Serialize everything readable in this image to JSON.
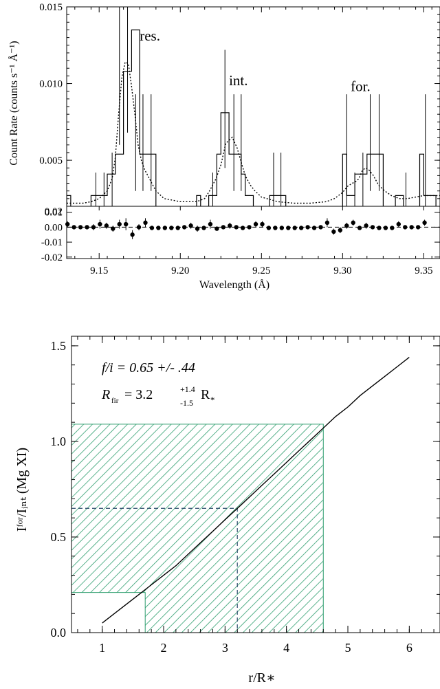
{
  "chart_data": [
    {
      "type": "line",
      "panel": "spectrum",
      "ylabel": "Count Rate (counts s⁻¹ Å⁻¹)",
      "xlim": [
        9.13,
        9.36
      ],
      "ylim": [
        0.002,
        0.015
      ],
      "y_ticks": [
        "0.005",
        "0.010",
        "0.015"
      ],
      "y_tick_values": [
        0.005,
        0.01,
        0.015
      ],
      "bottom_label": "0.02",
      "line_labels": [
        {
          "text": "res.",
          "x": 9.175,
          "y": 0.0128
        },
        {
          "text": "int.",
          "x": 9.23,
          "y": 0.0099
        },
        {
          "text": "for.",
          "x": 9.305,
          "y": 0.0095
        }
      ],
      "data_histogram": {
        "edges": [
          9.13,
          9.1325,
          9.1375,
          9.145,
          9.15,
          9.155,
          9.16,
          9.165,
          9.17,
          9.175,
          9.185,
          9.21,
          9.2125,
          9.2175,
          9.2225,
          9.225,
          9.23,
          9.235,
          9.2375,
          9.24,
          9.245,
          9.255,
          9.2575,
          9.265,
          9.3,
          9.3025,
          9.3075,
          9.3125,
          9.315,
          9.325,
          9.3325,
          9.3375,
          9.3475,
          9.35,
          9.3575
        ],
        "values": [
          0.0027,
          null,
          null,
          0.0027,
          0.0027,
          0.0041,
          0.0054,
          0.0108,
          0.0135,
          0.0054,
          null,
          0.0027,
          null,
          0.0027,
          0.0054,
          0.0081,
          0.0054,
          0.0054,
          0.0041,
          0.0027,
          null,
          0.0027,
          0.0027,
          null,
          0.0054,
          0.0027,
          0.0041,
          0.0041,
          0.0054,
          null,
          0.0027,
          null,
          0.0054,
          0.0027
        ]
      },
      "model_curve": {
        "x": [
          9.13,
          9.14,
          9.145,
          9.15,
          9.155,
          9.158,
          9.16,
          9.162,
          9.164,
          9.166,
          9.168,
          9.17,
          9.172,
          9.174,
          9.176,
          9.178,
          9.18,
          9.185,
          9.19,
          9.2,
          9.205,
          9.21,
          9.215,
          9.218,
          9.22,
          9.222,
          9.225,
          9.228,
          9.232,
          9.235,
          9.238,
          9.24,
          9.243,
          9.246,
          9.25,
          9.26,
          9.27,
          9.28,
          9.29,
          9.295,
          9.3,
          9.303,
          9.306,
          9.308,
          9.31,
          9.312,
          9.314,
          9.316,
          9.319,
          9.322,
          9.326,
          9.33,
          9.335,
          9.34,
          9.345,
          9.35,
          9.36
        ],
        "y": [
          0.0022,
          0.0022,
          0.0023,
          0.0025,
          0.003,
          0.0038,
          0.0052,
          0.008,
          0.0104,
          0.0114,
          0.0113,
          0.0098,
          0.008,
          0.006,
          0.005,
          0.0044,
          0.004,
          0.003,
          0.0025,
          0.0023,
          0.0023,
          0.0023,
          0.0025,
          0.003,
          0.0034,
          0.0038,
          0.0047,
          0.0061,
          0.0065,
          0.0058,
          0.0047,
          0.004,
          0.0034,
          0.003,
          0.0026,
          0.0023,
          0.0022,
          0.0022,
          0.0023,
          0.0025,
          0.0029,
          0.0033,
          0.0035,
          0.0036,
          0.0038,
          0.0043,
          0.0045,
          0.0044,
          0.004,
          0.0034,
          0.003,
          0.0027,
          0.0025,
          0.0025,
          0.0026,
          0.0027,
          0.0027
        ]
      },
      "error_bars": [
        {
          "x": 9.148,
          "lo": 0.002,
          "hi": 0.0042
        },
        {
          "x": 9.153,
          "lo": 0.002,
          "hi": 0.0042
        },
        {
          "x": 9.158,
          "lo": 0.002,
          "hi": 0.0055
        },
        {
          "x": 9.1625,
          "lo": 0.006,
          "hi": 0.0155
        },
        {
          "x": 9.1675,
          "lo": 0.0068,
          "hi": 0.0155
        },
        {
          "x": 9.1725,
          "lo": 0.003,
          "hi": 0.0093
        },
        {
          "x": 9.177,
          "lo": 0.003,
          "hi": 0.0093
        },
        {
          "x": 9.182,
          "lo": 0.003,
          "hi": 0.0093
        },
        {
          "x": 9.22,
          "lo": 0.002,
          "hi": 0.0042
        },
        {
          "x": 9.2275,
          "lo": 0.0045,
          "hi": 0.0122
        },
        {
          "x": 9.233,
          "lo": 0.003,
          "hi": 0.0093
        },
        {
          "x": 9.2375,
          "lo": 0.003,
          "hi": 0.0093
        },
        {
          "x": 9.2575,
          "lo": 0.002,
          "hi": 0.0055
        },
        {
          "x": 9.262,
          "lo": 0.002,
          "hi": 0.0055
        },
        {
          "x": 9.3025,
          "lo": 0.002,
          "hi": 0.0093
        },
        {
          "x": 9.3075,
          "lo": 0.002,
          "hi": 0.0042
        },
        {
          "x": 9.3125,
          "lo": 0.002,
          "hi": 0.0055
        },
        {
          "x": 9.317,
          "lo": 0.003,
          "hi": 0.0093
        },
        {
          "x": 9.3225,
          "lo": 0.003,
          "hi": 0.0093
        },
        {
          "x": 9.339,
          "lo": 0.002,
          "hi": 0.0042
        },
        {
          "x": 9.351,
          "lo": 0.002,
          "hi": 0.0093
        }
      ]
    },
    {
      "type": "scatter",
      "panel": "residuals",
      "xlabel": "Wavelength (Å)",
      "xlim": [
        9.13,
        9.36
      ],
      "ylim": [
        -0.021,
        0.014
      ],
      "y_ticks": [
        "0.01",
        "0.00",
        "-0.01",
        "-0.02"
      ],
      "y_tick_values": [
        0.01,
        0.0,
        -0.01,
        -0.02
      ],
      "x_ticks": [
        "9.15",
        "9.20",
        "9.25",
        "9.30",
        "9.35"
      ],
      "x_tick_values": [
        9.15,
        9.2,
        9.25,
        9.3,
        9.35
      ],
      "points": {
        "x": [
          9.1305,
          9.1345,
          9.1385,
          9.1425,
          9.1465,
          9.1505,
          9.1545,
          9.1585,
          9.1625,
          9.1665,
          9.1705,
          9.1745,
          9.1785,
          9.1825,
          9.1865,
          9.1905,
          9.1945,
          9.1985,
          9.2025,
          9.2065,
          9.2105,
          9.2145,
          9.2185,
          9.2225,
          9.2265,
          9.2305,
          9.2345,
          9.2385,
          9.2425,
          9.2465,
          9.2505,
          9.2545,
          9.2585,
          9.2625,
          9.2665,
          9.2705,
          9.2745,
          9.2785,
          9.2825,
          9.2865,
          9.2905,
          9.2945,
          9.2985,
          9.3025,
          9.3065,
          9.3105,
          9.3145,
          9.3185,
          9.3225,
          9.3265,
          9.3305,
          9.3345,
          9.3385,
          9.3425,
          9.3465,
          9.3505
        ],
        "y": [
          0.002,
          0.0,
          0.0,
          0.0,
          0.0,
          0.002,
          0.001,
          -0.001,
          0.002,
          0.002,
          -0.005,
          0.0,
          0.003,
          -0.0005,
          -0.0005,
          -0.0005,
          -0.0005,
          -0.0005,
          0.0,
          0.001,
          -0.001,
          -0.0005,
          0.002,
          -0.001,
          0.0,
          0.001,
          0.0,
          -0.0005,
          0.0,
          0.002,
          0.002,
          -0.0005,
          -0.0005,
          -0.0005,
          -0.0005,
          -0.0005,
          -0.0005,
          0.0,
          -0.0005,
          0.0,
          0.003,
          -0.003,
          -0.002,
          0.001,
          0.003,
          -0.0005,
          0.001,
          0.0,
          -0.0005,
          -0.0005,
          -0.0005,
          0.002,
          0.0,
          0.0,
          0.0,
          0.003
        ],
        "err": [
          0.002,
          0.001,
          0.001,
          0.001,
          0.002,
          0.003,
          0.002,
          0.002,
          0.003,
          0.004,
          0.003,
          0.002,
          0.003,
          0.001,
          0.001,
          0.001,
          0.001,
          0.001,
          0.001,
          0.002,
          0.002,
          0.001,
          0.003,
          0.001,
          0.001,
          0.002,
          0.001,
          0.001,
          0.001,
          0.002,
          0.002,
          0.001,
          0.001,
          0.001,
          0.001,
          0.001,
          0.001,
          0.001,
          0.001,
          0.001,
          0.003,
          0.002,
          0.002,
          0.002,
          0.002,
          0.001,
          0.002,
          0.001,
          0.001,
          0.001,
          0.001,
          0.002,
          0.001,
          0.001,
          0.001,
          0.002
        ]
      }
    },
    {
      "type": "line",
      "panel": "ratio",
      "xlabel": "r/R∗",
      "ylabel": "Iᶠᵒʳ/Iᵢₙₜ (Mg XI)",
      "xlim": [
        0.5,
        6.5
      ],
      "ylim": [
        0.0,
        1.55
      ],
      "x_ticks": [
        "1",
        "2",
        "3",
        "4",
        "5",
        "6"
      ],
      "x_tick_values": [
        1,
        2,
        3,
        4,
        5,
        6
      ],
      "y_ticks": [
        "0.0",
        "0.5",
        "1.0",
        "1.5"
      ],
      "y_tick_values": [
        0.0,
        0.5,
        1.0,
        1.5
      ],
      "annotation_fi": "f/i = 0.65 +/- .44",
      "annotation_r": "R",
      "annotation_r_sub": "fir",
      "annotation_r_value": "= 3.2",
      "annotation_r_sup": "+1.4",
      "annotation_r_low": "-1.5",
      "annotation_r_unit": "R",
      "annotation_r_unit_sub": "*",
      "curve": {
        "x": [
          1.0,
          1.2,
          1.4,
          1.6,
          1.8,
          2.0,
          2.2,
          2.4,
          2.6,
          2.8,
          3.0,
          3.2,
          3.4,
          3.6,
          3.8,
          4.0,
          4.2,
          4.4,
          4.6,
          4.8,
          5.0,
          5.2,
          5.4,
          5.6,
          5.8,
          6.0
        ],
        "y": [
          0.05,
          0.1,
          0.15,
          0.2,
          0.25,
          0.3,
          0.35,
          0.41,
          0.47,
          0.53,
          0.59,
          0.65,
          0.71,
          0.77,
          0.83,
          0.89,
          0.95,
          1.01,
          1.07,
          1.13,
          1.18,
          1.24,
          1.29,
          1.34,
          1.39,
          1.44
        ]
      },
      "confidence_region": {
        "fi_low": 0.21,
        "fi_high": 1.09,
        "r_low": 1.7,
        "r_high": 4.6
      },
      "best_fit": {
        "fi": 0.65,
        "r": 3.2
      },
      "hatch_color": "#2e9e6e"
    }
  ]
}
